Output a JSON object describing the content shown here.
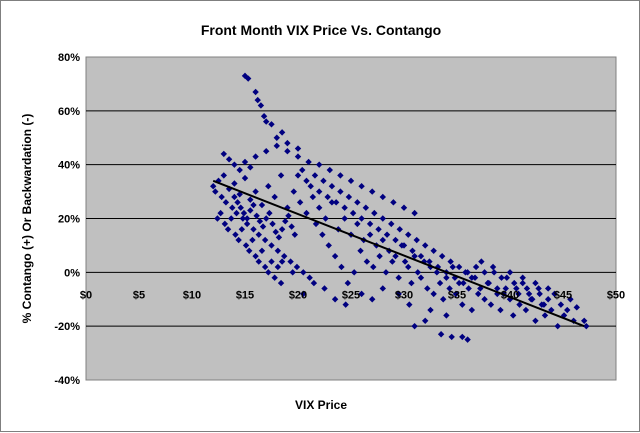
{
  "chart_data": {
    "type": "scatter",
    "title": "Front Month VIX Price Vs. Contango",
    "xlabel": "VIX Price",
    "ylabel": "% Contango (+) Or Backwardation (-)",
    "xlim": [
      0,
      50
    ],
    "ylim": [
      -40,
      80
    ],
    "x_ticks": [
      "$0",
      "$5",
      "$10",
      "$15",
      "$20",
      "$25",
      "$30",
      "$35",
      "$40",
      "$45",
      "$50"
    ],
    "y_ticks": [
      "80%",
      "60%",
      "40%",
      "20%",
      "0%",
      "-20%",
      "-40%"
    ],
    "x_tick_values": [
      0,
      5,
      10,
      15,
      20,
      25,
      30,
      35,
      40,
      45,
      50
    ],
    "y_tick_values": [
      80,
      60,
      40,
      20,
      0,
      -20,
      -40
    ],
    "grid": "horizontal",
    "plot_background": "#c0c0c0",
    "marker_color": "#000080",
    "trendline": {
      "color": "#000000",
      "points": [
        [
          12,
          34
        ],
        [
          47,
          -20
        ]
      ]
    },
    "series": [
      {
        "points": [
          [
            15,
            73
          ],
          [
            15.3,
            72
          ],
          [
            16,
            67
          ],
          [
            16.2,
            64
          ],
          [
            16.5,
            62
          ],
          [
            16.8,
            58
          ],
          [
            17,
            56
          ],
          [
            17.5,
            55
          ],
          [
            18.5,
            52
          ],
          [
            18,
            50
          ],
          [
            19,
            48
          ],
          [
            20,
            46
          ],
          [
            13,
            44
          ],
          [
            13.5,
            42
          ],
          [
            14,
            40
          ],
          [
            14.5,
            38
          ],
          [
            15,
            41
          ],
          [
            15.5,
            39
          ],
          [
            16,
            43
          ],
          [
            17,
            45
          ],
          [
            18,
            47
          ],
          [
            19,
            45
          ],
          [
            20,
            43
          ],
          [
            21,
            41
          ],
          [
            22,
            40
          ],
          [
            23,
            38
          ],
          [
            24,
            36
          ],
          [
            25,
            34
          ],
          [
            26,
            32
          ],
          [
            27,
            30
          ],
          [
            28,
            28
          ],
          [
            29,
            26
          ],
          [
            30,
            24
          ],
          [
            31,
            22
          ],
          [
            12,
            32
          ],
          [
            12.2,
            30
          ],
          [
            12.5,
            34
          ],
          [
            12.8,
            28
          ],
          [
            13,
            36
          ],
          [
            13.2,
            26
          ],
          [
            13.5,
            31
          ],
          [
            13.8,
            24
          ],
          [
            14,
            33
          ],
          [
            14.2,
            22
          ],
          [
            14.5,
            29
          ],
          [
            14.8,
            20
          ],
          [
            15,
            35
          ],
          [
            15.2,
            18
          ],
          [
            15.5,
            27
          ],
          [
            15.8,
            16
          ],
          [
            16,
            30
          ],
          [
            16.3,
            14
          ],
          [
            16.6,
            25
          ],
          [
            16.9,
            12
          ],
          [
            17.2,
            32
          ],
          [
            17.5,
            10
          ],
          [
            17.8,
            28
          ],
          [
            18.1,
            8
          ],
          [
            18.4,
            36
          ],
          [
            18.7,
            6
          ],
          [
            19,
            24
          ],
          [
            19.3,
            4
          ],
          [
            19.6,
            30
          ],
          [
            19.9,
            2
          ],
          [
            20.2,
            26
          ],
          [
            20.5,
            0
          ],
          [
            20.8,
            22
          ],
          [
            21.1,
            -2
          ],
          [
            21.4,
            28
          ],
          [
            21.7,
            18
          ],
          [
            22,
            24
          ],
          [
            22.3,
            14
          ],
          [
            22.6,
            20
          ],
          [
            22.9,
            10
          ],
          [
            23.2,
            26
          ],
          [
            23.5,
            6
          ],
          [
            23.8,
            16
          ],
          [
            24.1,
            2
          ],
          [
            24.4,
            20
          ],
          [
            24.7,
            -4
          ],
          [
            25,
            14
          ],
          [
            25.3,
            0
          ],
          [
            25.6,
            18
          ],
          [
            25.9,
            8
          ],
          [
            26.2,
            12
          ],
          [
            26.5,
            4
          ],
          [
            26.8,
            14
          ],
          [
            27.1,
            2
          ],
          [
            27.4,
            10
          ],
          [
            27.7,
            6
          ],
          [
            28,
            12
          ],
          [
            28.3,
            0
          ],
          [
            28.6,
            8
          ],
          [
            28.9,
            4
          ],
          [
            29.2,
            6
          ],
          [
            29.5,
            -2
          ],
          [
            29.8,
            10
          ],
          [
            30.1,
            4
          ],
          [
            30.4,
            2
          ],
          [
            30.7,
            -4
          ],
          [
            31,
            6
          ],
          [
            31.3,
            0
          ],
          [
            31.6,
            -2
          ],
          [
            31.9,
            4
          ],
          [
            32.2,
            -6
          ],
          [
            32.5,
            2
          ],
          [
            32.8,
            -8
          ],
          [
            33.1,
            0
          ],
          [
            33.4,
            -4
          ],
          [
            33.7,
            -10
          ],
          [
            34,
            -2
          ],
          [
            34.3,
            -6
          ],
          [
            34.6,
            2
          ],
          [
            34.9,
            -8
          ],
          [
            35.2,
            -4
          ],
          [
            35.5,
            -12
          ],
          [
            35.8,
            0
          ],
          [
            36.1,
            -6
          ],
          [
            36.4,
            -14
          ],
          [
            36.7,
            -2
          ],
          [
            37,
            -8
          ],
          [
            37.3,
            4
          ],
          [
            37.6,
            -10
          ],
          [
            37.9,
            -4
          ],
          [
            38.2,
            -12
          ],
          [
            38.5,
            0
          ],
          [
            38.8,
            -6
          ],
          [
            39.1,
            -14
          ],
          [
            39.4,
            -8
          ],
          [
            39.7,
            -2
          ],
          [
            40,
            -10
          ],
          [
            40.3,
            -16
          ],
          [
            40.6,
            -6
          ],
          [
            40.9,
            -12
          ],
          [
            41.2,
            -4
          ],
          [
            41.5,
            -14
          ],
          [
            41.8,
            -8
          ],
          [
            42.1,
            -10
          ],
          [
            42.4,
            -18
          ],
          [
            42.7,
            -6
          ],
          [
            43,
            -12
          ],
          [
            43.3,
            -16
          ],
          [
            43.6,
            -10
          ],
          [
            43.9,
            -14
          ],
          [
            44.2,
            -8
          ],
          [
            44.5,
            -20
          ],
          [
            44.8,
            -12
          ],
          [
            45.1,
            -16
          ],
          [
            45.4,
            -14
          ],
          [
            45.7,
            -10
          ],
          [
            46,
            -18
          ],
          [
            46.3,
            -13
          ],
          [
            47,
            -18
          ],
          [
            47.2,
            -20
          ],
          [
            31,
            -20
          ],
          [
            32,
            -18
          ],
          [
            33.5,
            -23
          ],
          [
            34.5,
            -24
          ],
          [
            35.5,
            -24
          ],
          [
            36,
            -25
          ],
          [
            34,
            -16
          ],
          [
            32.5,
            -14
          ],
          [
            30.5,
            -12
          ],
          [
            29.5,
            -8
          ],
          [
            28,
            -6
          ],
          [
            27,
            -10
          ],
          [
            26,
            -8
          ],
          [
            24.5,
            -12
          ],
          [
            23.5,
            -10
          ],
          [
            22.5,
            -6
          ],
          [
            21.5,
            -4
          ],
          [
            20.5,
            -8
          ],
          [
            19.5,
            0
          ],
          [
            18.5,
            4
          ],
          [
            14,
            28
          ],
          [
            14.3,
            26
          ],
          [
            14.6,
            24
          ],
          [
            14.9,
            22
          ],
          [
            15.2,
            20
          ],
          [
            15.5,
            23
          ],
          [
            15.8,
            25
          ],
          [
            16.1,
            21
          ],
          [
            16.4,
            19
          ],
          [
            16.7,
            17
          ],
          [
            17,
            20
          ],
          [
            17.3,
            22
          ],
          [
            17.6,
            18
          ],
          [
            17.9,
            15
          ],
          [
            18.2,
            13
          ],
          [
            18.5,
            16
          ],
          [
            18.8,
            19
          ],
          [
            19.1,
            21
          ],
          [
            19.4,
            17
          ],
          [
            19.7,
            14
          ],
          [
            20,
            36
          ],
          [
            20.4,
            38
          ],
          [
            20.8,
            34
          ],
          [
            21.2,
            32
          ],
          [
            21.6,
            36
          ],
          [
            22,
            30
          ],
          [
            22.4,
            34
          ],
          [
            22.8,
            28
          ],
          [
            23.2,
            32
          ],
          [
            23.6,
            26
          ],
          [
            24,
            30
          ],
          [
            24.4,
            24
          ],
          [
            24.8,
            28
          ],
          [
            25.2,
            22
          ],
          [
            25.6,
            26
          ],
          [
            26,
            20
          ],
          [
            26.4,
            24
          ],
          [
            26.8,
            18
          ],
          [
            27.2,
            22
          ],
          [
            27.6,
            16
          ],
          [
            28,
            20
          ],
          [
            28.4,
            14
          ],
          [
            28.8,
            18
          ],
          [
            29.2,
            12
          ],
          [
            29.6,
            16
          ],
          [
            30,
            10
          ],
          [
            30.4,
            14
          ],
          [
            30.8,
            8
          ],
          [
            31.2,
            12
          ],
          [
            31.6,
            6
          ],
          [
            32,
            10
          ],
          [
            32.4,
            4
          ],
          [
            32.8,
            8
          ],
          [
            33.2,
            2
          ],
          [
            33.6,
            6
          ],
          [
            34,
            0
          ],
          [
            34.4,
            4
          ],
          [
            34.8,
            -2
          ],
          [
            35.2,
            2
          ],
          [
            35.6,
            -4
          ],
          [
            36,
            0
          ],
          [
            36.4,
            -2
          ],
          [
            36.8,
            2
          ],
          [
            37.2,
            -6
          ],
          [
            37.6,
            0
          ],
          [
            38,
            -4
          ],
          [
            38.4,
            2
          ],
          [
            38.8,
            -8
          ],
          [
            39.2,
            -2
          ],
          [
            39.6,
            -6
          ],
          [
            40,
            0
          ],
          [
            40.4,
            -4
          ],
          [
            40.8,
            -8
          ],
          [
            41.2,
            -2
          ],
          [
            41.6,
            -6
          ],
          [
            42,
            -10
          ],
          [
            42.4,
            -4
          ],
          [
            42.8,
            -8
          ],
          [
            43.2,
            -12
          ],
          [
            43.6,
            -6
          ],
          [
            12.4,
            20
          ],
          [
            12.7,
            22
          ],
          [
            13.1,
            18
          ],
          [
            13.4,
            16
          ],
          [
            13.7,
            20
          ],
          [
            14.1,
            14
          ],
          [
            14.4,
            12
          ],
          [
            14.7,
            16
          ],
          [
            15.1,
            10
          ],
          [
            15.4,
            8
          ],
          [
            15.7,
            12
          ],
          [
            16,
            6
          ],
          [
            16.3,
            4
          ],
          [
            16.6,
            8
          ],
          [
            16.9,
            2
          ],
          [
            17.2,
            0
          ],
          [
            17.5,
            4
          ],
          [
            17.8,
            -2
          ],
          [
            18.1,
            2
          ],
          [
            18.4,
            -4
          ]
        ]
      }
    ]
  }
}
